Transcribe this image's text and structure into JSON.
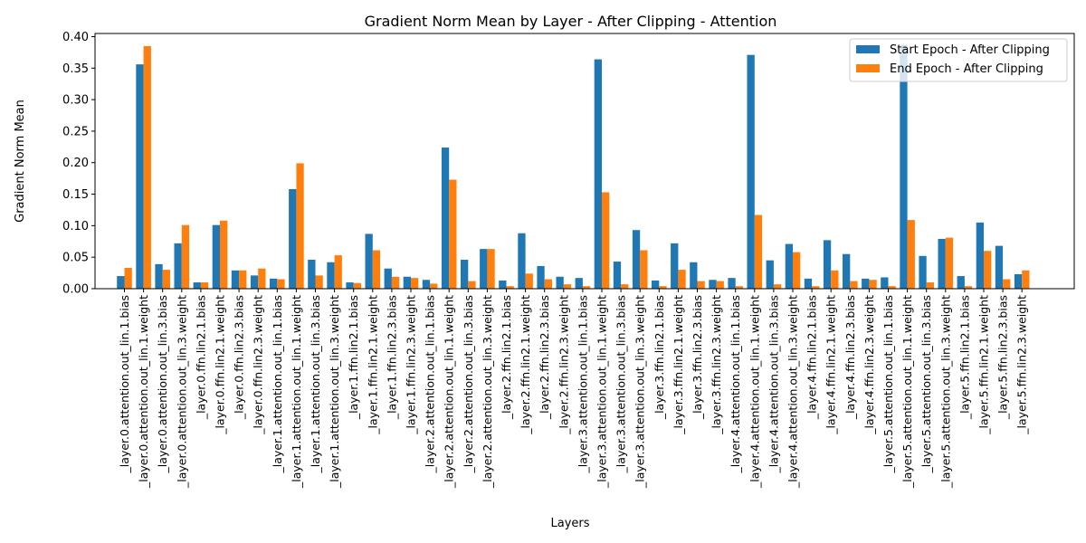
{
  "chart_data": {
    "type": "bar",
    "title": "Gradient Norm Mean by Layer - After Clipping - Attention",
    "xlabel": "Layers",
    "ylabel": "Gradient Norm Mean",
    "ylim": [
      0,
      0.405
    ],
    "yticks": [
      "0.00",
      "0.05",
      "0.10",
      "0.15",
      "0.20",
      "0.25",
      "0.30",
      "0.35",
      "0.40"
    ],
    "grid": false,
    "legend_position": "upper right",
    "categories": [
      "_layer.0.attention.out_lin.1.bias",
      "_layer.0.attention.out_lin.1.weight",
      "_layer.0.attention.out_lin.3.bias",
      "_layer.0.attention.out_lin.3.weight",
      "_layer.0.ffn.lin2.1.bias",
      "_layer.0.ffn.lin2.1.weight",
      "_layer.0.ffn.lin2.3.bias",
      "_layer.0.ffn.lin2.3.weight",
      "_layer.1.attention.out_lin.1.bias",
      "_layer.1.attention.out_lin.1.weight",
      "_layer.1.attention.out_lin.3.bias",
      "_layer.1.attention.out_lin.3.weight",
      "_layer.1.ffn.lin2.1.bias",
      "_layer.1.ffn.lin2.1.weight",
      "_layer.1.ffn.lin2.3.bias",
      "_layer.1.ffn.lin2.3.weight",
      "_layer.2.attention.out_lin.1.bias",
      "_layer.2.attention.out_lin.1.weight",
      "_layer.2.attention.out_lin.3.bias",
      "_layer.2.attention.out_lin.3.weight",
      "_layer.2.ffn.lin2.1.bias",
      "_layer.2.ffn.lin2.1.weight",
      "_layer.2.ffn.lin2.3.bias",
      "_layer.2.ffn.lin2.3.weight",
      "_layer.3.attention.out_lin.1.bias",
      "_layer.3.attention.out_lin.1.weight",
      "_layer.3.attention.out_lin.3.bias",
      "_layer.3.attention.out_lin.3.weight",
      "_layer.3.ffn.lin2.1.bias",
      "_layer.3.ffn.lin2.1.weight",
      "_layer.3.ffn.lin2.3.bias",
      "_layer.3.ffn.lin2.3.weight",
      "_layer.4.attention.out_lin.1.bias",
      "_layer.4.attention.out_lin.1.weight",
      "_layer.4.attention.out_lin.3.bias",
      "_layer.4.attention.out_lin.3.weight",
      "_layer.4.ffn.lin2.1.bias",
      "_layer.4.ffn.lin2.1.weight",
      "_layer.4.ffn.lin2.3.bias",
      "_layer.4.ffn.lin2.3.weight",
      "_layer.5.attention.out_lin.1.bias",
      "_layer.5.attention.out_lin.1.weight",
      "_layer.5.attention.out_lin.3.bias",
      "_layer.5.attention.out_lin.3.weight",
      "_layer.5.ffn.lin2.1.bias",
      "_layer.5.ffn.lin2.1.weight",
      "_layer.5.ffn.lin2.3.bias",
      "_layer.5.ffn.lin2.3.weight"
    ],
    "series": [
      {
        "name": "Start Epoch - After Clipping",
        "color": "#1f77b4",
        "values": [
          0.02,
          0.356,
          0.039,
          0.072,
          0.01,
          0.101,
          0.029,
          0.021,
          0.016,
          0.158,
          0.046,
          0.042,
          0.01,
          0.087,
          0.032,
          0.019,
          0.014,
          0.224,
          0.046,
          0.063,
          0.013,
          0.088,
          0.036,
          0.019,
          0.017,
          0.364,
          0.043,
          0.093,
          0.013,
          0.072,
          0.042,
          0.014,
          0.017,
          0.371,
          0.045,
          0.071,
          0.016,
          0.077,
          0.055,
          0.016,
          0.018,
          0.387,
          0.052,
          0.079,
          0.02,
          0.105,
          0.068,
          0.023
        ]
      },
      {
        "name": "End Epoch - After Clipping",
        "color": "#ff7f0e",
        "values": [
          0.033,
          0.385,
          0.03,
          0.101,
          0.01,
          0.108,
          0.029,
          0.032,
          0.015,
          0.199,
          0.021,
          0.053,
          0.009,
          0.061,
          0.019,
          0.017,
          0.008,
          0.173,
          0.012,
          0.063,
          0.004,
          0.024,
          0.015,
          0.007,
          0.004,
          0.153,
          0.007,
          0.061,
          0.004,
          0.03,
          0.012,
          0.012,
          0.004,
          0.117,
          0.007,
          0.058,
          0.004,
          0.029,
          0.012,
          0.014,
          0.004,
          0.109,
          0.01,
          0.081,
          0.004,
          0.06,
          0.015,
          0.029
        ]
      }
    ]
  }
}
